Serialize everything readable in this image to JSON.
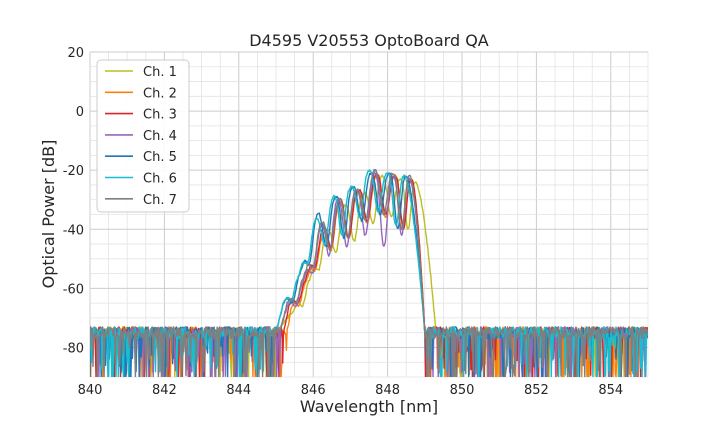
{
  "chart_data": {
    "type": "line",
    "title": "D4595 V20553 OptoBoard QA",
    "xlabel": "Wavelength [nm]",
    "ylabel": "Optical Power [dB]",
    "xlim": [
      840,
      855
    ],
    "ylim": [
      -90,
      20
    ],
    "xticks": [
      840,
      842,
      844,
      846,
      848,
      850,
      852,
      854
    ],
    "yticks": [
      -80,
      -60,
      -40,
      -20,
      0,
      20
    ],
    "grid": true,
    "legend_position": "top-left",
    "noise_floor_db": -75,
    "series": [
      {
        "name": "Ch. 1",
        "color": "#bcbd22",
        "center_nm": 847.8,
        "passband_nm": [
          845.0,
          849.3
        ],
        "ripple_peaks_nm": [
          845.5,
          845.9,
          846.35,
          846.85,
          847.35,
          847.85,
          848.35,
          848.75
        ],
        "ripple_peaks_db": [
          -67,
          -57,
          -41,
          -32,
          -28,
          -22,
          -23,
          -24
        ],
        "ripple_dips_db": [
          -73,
          -66,
          -54,
          -48,
          -44,
          -38,
          -36,
          -40
        ]
      },
      {
        "name": "Ch. 2",
        "color": "#ff7f0e",
        "center_nm": 847.6,
        "passband_nm": [
          845.3,
          849.0
        ],
        "ripple_peaks_nm": [
          845.4,
          845.8,
          846.25,
          846.7,
          847.2,
          847.7,
          848.2,
          848.65
        ],
        "ripple_peaks_db": [
          -67,
          -58,
          -42,
          -31,
          -28,
          -22,
          -22,
          -23
        ],
        "ripple_dips_db": [
          -73,
          -66,
          -54,
          -47,
          -43,
          -38,
          -36,
          -40
        ]
      },
      {
        "name": "Ch. 3",
        "color": "#d62728",
        "center_nm": 847.6,
        "passband_nm": [
          845.2,
          849.0
        ],
        "ripple_peaks_nm": [
          845.35,
          845.8,
          846.25,
          846.7,
          847.2,
          847.7,
          848.2,
          848.65
        ],
        "ripple_peaks_db": [
          -66,
          -57,
          -40,
          -30,
          -27,
          -21,
          -22,
          -23
        ],
        "ripple_dips_db": [
          -72,
          -65,
          -53,
          -46,
          -43,
          -37,
          -35,
          -40
        ]
      },
      {
        "name": "Ch. 4",
        "color": "#9467bd",
        "center_nm": 847.5,
        "passband_nm": [
          845.1,
          849.0
        ],
        "ripple_peaks_nm": [
          845.3,
          845.75,
          846.2,
          846.65,
          847.15,
          847.65,
          848.15,
          848.6
        ],
        "ripple_peaks_db": [
          -66,
          -57,
          -39,
          -30,
          -27,
          -21,
          -22,
          -23
        ],
        "ripple_dips_db": [
          -73,
          -66,
          -55,
          -49,
          -46,
          -42,
          -46,
          -42
        ]
      },
      {
        "name": "Ch. 5",
        "color": "#1f77b4",
        "center_nm": 847.4,
        "passband_nm": [
          845.0,
          849.0
        ],
        "ripple_peaks_nm": [
          845.2,
          845.65,
          846.1,
          846.6,
          847.05,
          847.55,
          848.05,
          848.5
        ],
        "ripple_peaks_db": [
          -65,
          -55,
          -35,
          -29,
          -26,
          -21,
          -21,
          -22
        ],
        "ripple_dips_db": [
          -72,
          -65,
          -52,
          -46,
          -43,
          -37,
          -35,
          -40
        ]
      },
      {
        "name": "Ch. 6",
        "color": "#17becf",
        "center_nm": 847.3,
        "passband_nm": [
          845.0,
          849.0
        ],
        "ripple_peaks_nm": [
          845.2,
          845.6,
          846.05,
          846.55,
          847.0,
          847.5,
          848.0,
          848.45
        ],
        "ripple_peaks_db": [
          -65,
          -56,
          -37,
          -29,
          -26,
          -20,
          -21,
          -22
        ],
        "ripple_dips_db": [
          -72,
          -64,
          -52,
          -45,
          -42,
          -36,
          -34,
          -39
        ]
      },
      {
        "name": "Ch. 7",
        "color": "#7f7f7f",
        "center_nm": 847.5,
        "passband_nm": [
          845.1,
          849.0
        ],
        "ripple_peaks_nm": [
          845.3,
          845.75,
          846.2,
          846.7,
          847.15,
          847.65,
          848.15,
          848.6
        ],
        "ripple_peaks_db": [
          -65,
          -56,
          -38,
          -30,
          -27,
          -20,
          -21,
          -22
        ],
        "ripple_dips_db": [
          -72,
          -65,
          -53,
          -47,
          -43,
          -37,
          -35,
          -40
        ]
      }
    ]
  }
}
